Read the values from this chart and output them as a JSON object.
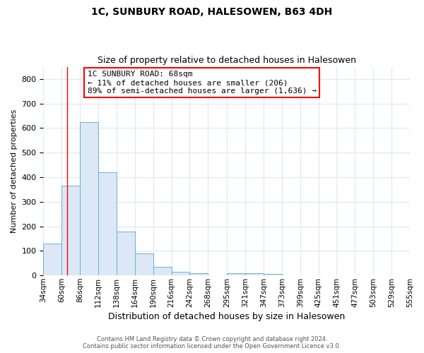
{
  "title": "1C, SUNBURY ROAD, HALESOWEN, B63 4DH",
  "subtitle": "Size of property relative to detached houses in Halesowen",
  "xlabel": "Distribution of detached houses by size in Halesowen",
  "ylabel": "Number of detached properties",
  "bar_color": "#dce8f5",
  "bar_edge_color": "#6baed6",
  "bin_labels": [
    "34sqm",
    "60sqm",
    "86sqm",
    "112sqm",
    "138sqm",
    "164sqm",
    "190sqm",
    "216sqm",
    "242sqm",
    "268sqm",
    "295sqm",
    "321sqm",
    "347sqm",
    "373sqm",
    "399sqm",
    "425sqm",
    "451sqm",
    "477sqm",
    "503sqm",
    "529sqm",
    "555sqm"
  ],
  "bar_heights": [
    130,
    365,
    625,
    420,
    180,
    90,
    35,
    15,
    10,
    0,
    10,
    10,
    5,
    0,
    0,
    0,
    0,
    0,
    0,
    0,
    0
  ],
  "bin_edges": [
    34,
    60,
    86,
    112,
    138,
    164,
    190,
    216,
    242,
    268,
    295,
    321,
    347,
    373,
    399,
    425,
    451,
    477,
    503,
    529,
    555
  ],
  "red_line_x": 68,
  "annotation_line1": "1C SUNBURY ROAD: 68sqm",
  "annotation_line2": "← 11% of detached houses are smaller (206)",
  "annotation_line3": "89% of semi-detached houses are larger (1,636) →",
  "ylim": [
    0,
    850
  ],
  "yticks": [
    0,
    100,
    200,
    300,
    400,
    500,
    600,
    700,
    800
  ],
  "footer_line1": "Contains HM Land Registry data © Crown copyright and database right 2024.",
  "footer_line2": "Contains public sector information licensed under the Open Government Licence v3.0.",
  "grid_color": "#dce8f5",
  "title_fontsize": 10,
  "subtitle_fontsize": 9,
  "xlabel_fontsize": 9,
  "ylabel_fontsize": 8,
  "tick_fontsize": 8,
  "annotation_fontsize": 8,
  "footer_fontsize": 6
}
